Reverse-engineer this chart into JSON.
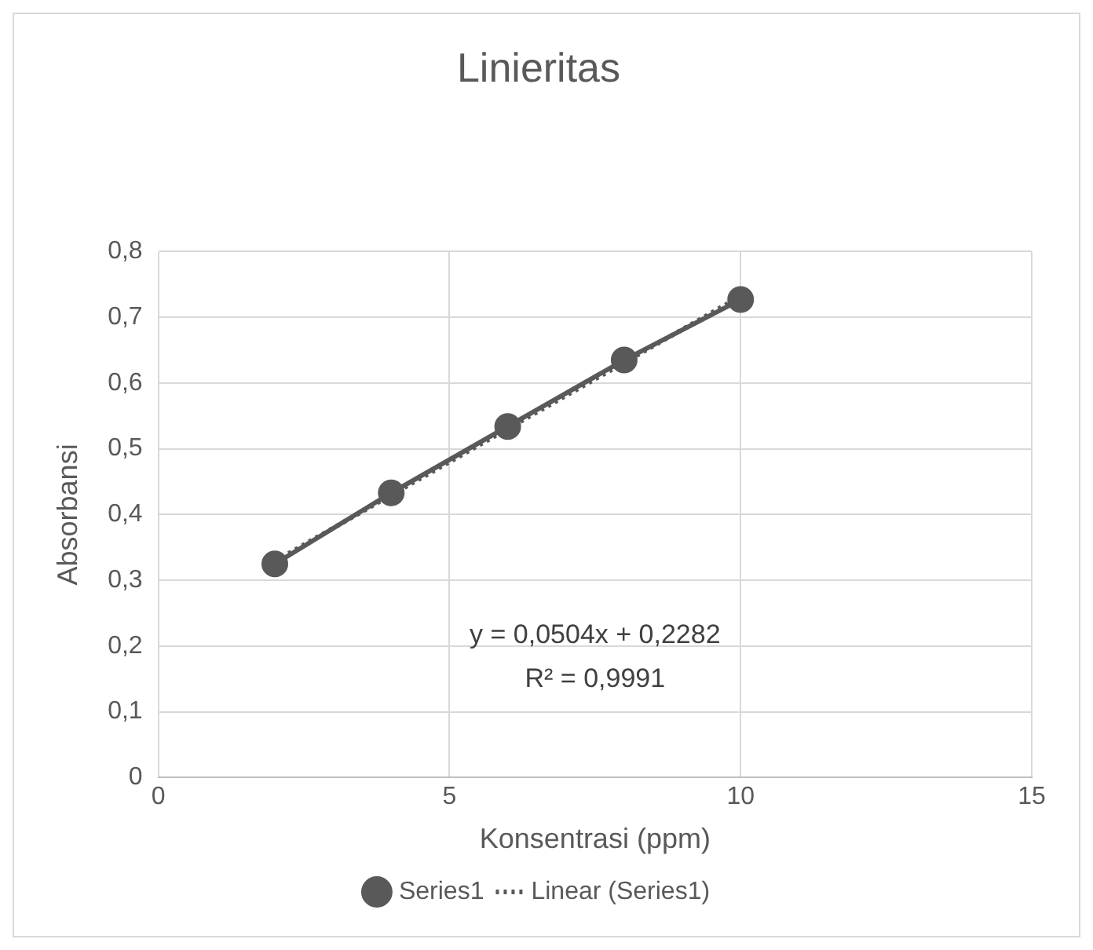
{
  "chart_data": {
    "type": "scatter",
    "title": "Linieritas",
    "xlabel": "Konsentrasi (ppm)",
    "ylabel": "Absorbansi",
    "x": [
      2,
      4,
      6,
      8,
      10
    ],
    "series": [
      {
        "name": "Series1",
        "type": "line",
        "color": "#595959",
        "marker": "circle",
        "line_style": "solid",
        "values": [
          0.325,
          0.433,
          0.534,
          0.635,
          0.727
        ]
      },
      {
        "name": "Linear (Series1)",
        "type": "line",
        "color": "#595959",
        "marker": "none",
        "line_style": "dotted",
        "x": [
          2,
          10
        ],
        "values": [
          0.329,
          0.732
        ]
      }
    ],
    "xlim": [
      0,
      15
    ],
    "xticks": [
      0,
      5,
      10,
      15
    ],
    "ylim": [
      0,
      0.8
    ],
    "yticks": [
      0,
      {
        "value": 0.1,
        "label": "0,1"
      },
      {
        "value": 0.2,
        "label": "0,2"
      },
      {
        "value": 0.3,
        "label": "0,3"
      },
      {
        "value": 0.4,
        "label": "0,4"
      },
      {
        "value": 0.5,
        "label": "0,5"
      },
      {
        "value": 0.6,
        "label": "0,6"
      },
      {
        "value": 0.7,
        "label": "0,7"
      },
      {
        "value": 0.8,
        "label": "0,8"
      }
    ],
    "grid": true,
    "legend": "bottom",
    "annotations": [
      "y = 0,0504x + 0,2282",
      "R² = 0,9991"
    ]
  }
}
